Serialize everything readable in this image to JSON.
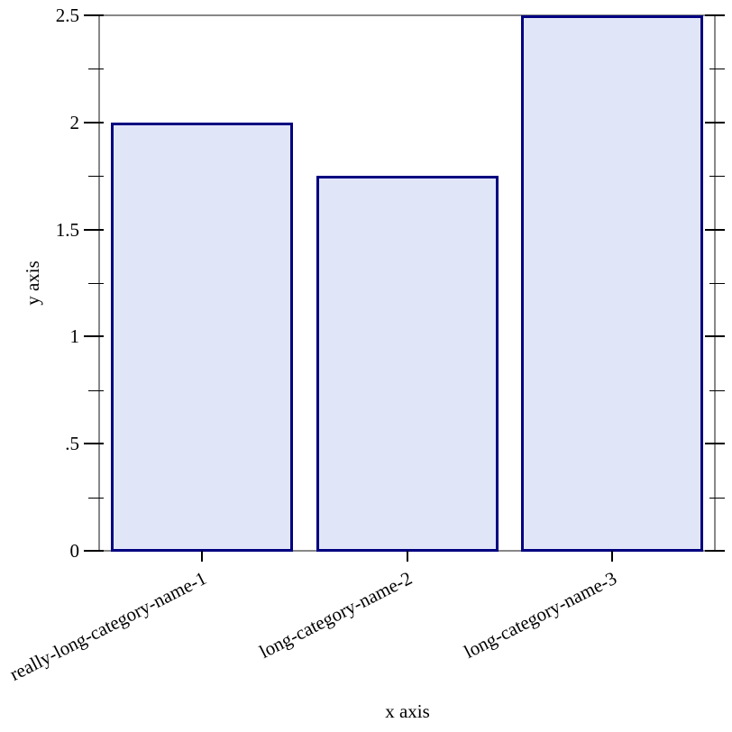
{
  "chart_data": {
    "type": "bar",
    "title": "",
    "xlabel": "x axis",
    "ylabel": "y axis",
    "categories": [
      "really-long-category-name-1",
      "long-category-name-2",
      "long-category-name-3"
    ],
    "values": [
      2,
      1.75,
      2.5
    ],
    "ylim": [
      0,
      2.5
    ],
    "y_major_ticks": [
      {
        "value": 0,
        "label": "0"
      },
      {
        "value": 0.5,
        "label": ".5"
      },
      {
        "value": 1,
        "label": "1"
      },
      {
        "value": 1.5,
        "label": "1.5"
      },
      {
        "value": 2,
        "label": "2"
      },
      {
        "value": 2.5,
        "label": "2.5"
      }
    ],
    "y_minor_ticks": [
      0.25,
      0.75,
      1.25,
      1.75,
      2.25
    ],
    "grid": false,
    "legend": "none",
    "colors": {
      "bar_fill": "#e1e5f8",
      "bar_border": "#000080",
      "frame": "#888888",
      "tick": "#000000",
      "text": "#000000",
      "background": "#ffffff"
    }
  }
}
